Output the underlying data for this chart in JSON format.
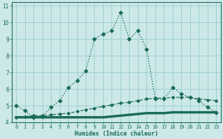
{
  "background_color": "#cce8e8",
  "grid_color": "#99cccc",
  "line_color": "#1a6b5a",
  "xlabel": "Humidex (Indice chaleur)",
  "xlim": [
    -0.5,
    23.5
  ],
  "ylim": [
    4.0,
    11.2
  ],
  "xticks": [
    0,
    1,
    2,
    3,
    4,
    5,
    6,
    7,
    8,
    9,
    10,
    11,
    12,
    13,
    14,
    15,
    16,
    17,
    18,
    19,
    20,
    21,
    22,
    23
  ],
  "yticks": [
    4,
    5,
    6,
    7,
    8,
    9,
    10,
    11
  ],
  "series": [
    {
      "x": [
        0,
        1,
        2,
        3,
        4,
        5,
        6,
        7,
        8,
        9,
        10,
        11,
        12,
        13,
        14,
        15,
        16,
        17,
        18,
        19,
        20,
        21,
        22,
        23
      ],
      "y": [
        5.0,
        4.7,
        4.3,
        4.35,
        4.9,
        5.3,
        6.1,
        6.5,
        7.1,
        9.0,
        9.3,
        9.5,
        10.6,
        9.0,
        9.5,
        8.4,
        5.4,
        5.4,
        6.1,
        5.7,
        5.5,
        5.3,
        4.9,
        4.6
      ],
      "linestyle": "dotted",
      "linewidth": 1.0,
      "marker": "D",
      "markersize": 2.5
    },
    {
      "x": [
        0,
        1,
        2,
        3,
        4,
        5,
        6,
        7,
        8,
        9,
        10,
        11,
        12,
        13,
        14,
        15,
        16,
        17,
        18,
        19,
        20,
        21,
        22,
        23
      ],
      "y": [
        4.3,
        4.3,
        4.3,
        4.3,
        4.3,
        4.3,
        4.3,
        4.3,
        4.3,
        4.3,
        4.3,
        4.35,
        4.4,
        4.45,
        4.5,
        4.55,
        4.55,
        4.55,
        4.6,
        4.6,
        4.6,
        4.6,
        4.6,
        4.6
      ],
      "linestyle": "solid",
      "linewidth": 2.5,
      "marker": null,
      "markersize": 0
    },
    {
      "x": [
        0,
        1,
        2,
        3,
        4,
        5,
        6,
        7,
        8,
        9,
        10,
        11,
        12,
        13,
        14,
        15,
        16,
        17,
        18,
        19,
        20,
        21,
        22,
        23
      ],
      "y": [
        4.3,
        4.35,
        4.4,
        4.4,
        4.45,
        4.5,
        4.55,
        4.65,
        4.75,
        4.85,
        4.95,
        5.05,
        5.15,
        5.2,
        5.3,
        5.4,
        5.45,
        5.45,
        5.5,
        5.5,
        5.5,
        5.4,
        5.35,
        5.3
      ],
      "linestyle": "dashed",
      "linewidth": 0.9,
      "marker": "D",
      "markersize": 2.0
    }
  ]
}
